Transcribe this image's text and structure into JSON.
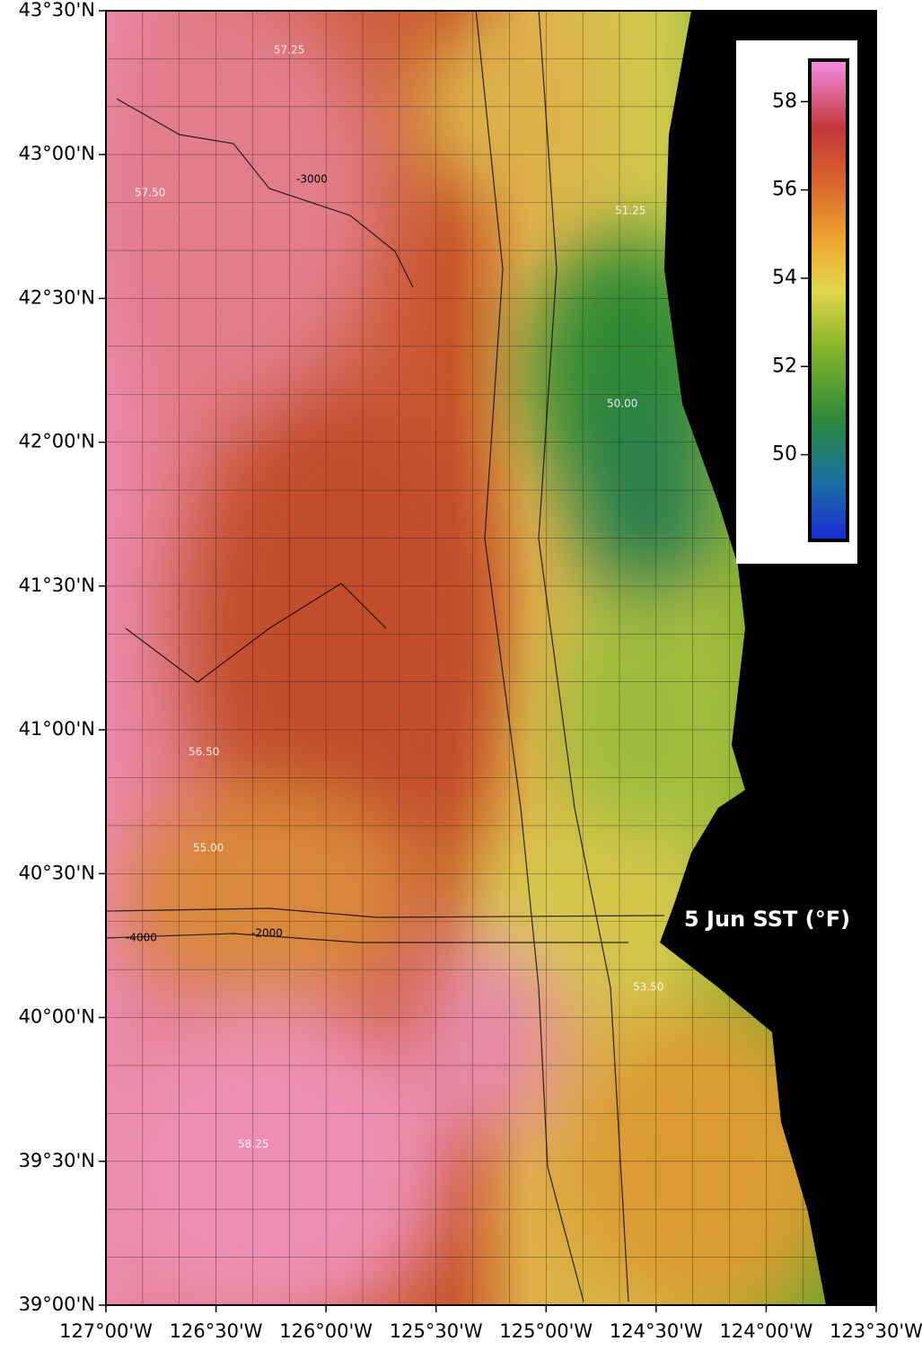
{
  "map": {
    "title": "5 Jun SST (°F)",
    "xlim": [
      -127,
      -123.5
    ],
    "ylim": [
      39,
      43.5
    ],
    "lon_ticks": [
      {
        "value": -127,
        "label": "127°00'W"
      },
      {
        "value": -126.5,
        "label": "126°30'W"
      },
      {
        "value": -126,
        "label": "126°00'W"
      },
      {
        "value": -125.5,
        "label": "125°30'W"
      },
      {
        "value": -125,
        "label": "125°00'W"
      },
      {
        "value": -124.5,
        "label": "124°30'W"
      },
      {
        "value": -124,
        "label": "124°00'W"
      },
      {
        "value": -123.5,
        "label": "123°30'W"
      }
    ],
    "lat_ticks": [
      {
        "value": 43.5,
        "label": "43°30'N"
      },
      {
        "value": 43,
        "label": "43°00'N"
      },
      {
        "value": 42.5,
        "label": "42°30'N"
      },
      {
        "value": 42,
        "label": "42°00'N"
      },
      {
        "value": 41.5,
        "label": "41°30'N"
      },
      {
        "value": 41,
        "label": "41°00'N"
      },
      {
        "value": 40.5,
        "label": "40°30'N"
      },
      {
        "value": 40,
        "label": "40°00'N"
      },
      {
        "value": 39.5,
        "label": "39°30'N"
      },
      {
        "value": 39,
        "label": "39°00'N"
      }
    ],
    "colorbar": {
      "range": [
        48.1,
        58.9
      ],
      "ticks": [
        50,
        52,
        54,
        56,
        58
      ]
    },
    "contour_labels": [
      "57.25",
      "57.50",
      "51.25",
      "50.00",
      "56.50",
      "55.00",
      "53.50",
      "58.25",
      "-3000",
      "-2000",
      "-4000"
    ]
  }
}
